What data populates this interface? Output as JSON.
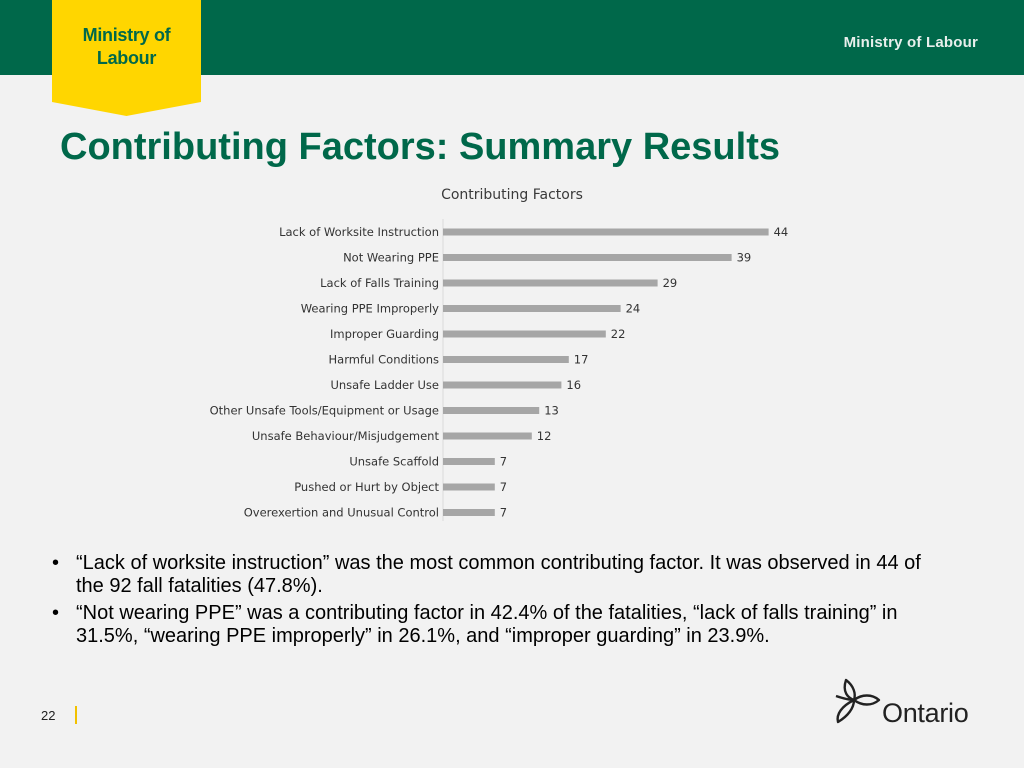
{
  "header": {
    "tab_line1": "Ministry of",
    "tab_line2": "Labour",
    "ministry_name": "Ministry of Labour",
    "brand_green": "#00684a",
    "brand_yellow": "#ffd600"
  },
  "slide": {
    "title": "Contributing Factors: Summary Results",
    "page_number": "22"
  },
  "chart_data": {
    "type": "bar",
    "orientation": "horizontal",
    "title": "Contributing Factors",
    "xlabel": "",
    "ylabel": "",
    "grid": false,
    "legend": "none",
    "bar_color": "#a6a6a6",
    "xlim": [
      0,
      50
    ],
    "categories": [
      "Lack of Worksite Instruction",
      "Not Wearing PPE",
      "Lack of Falls Training",
      "Wearing PPE Improperly",
      "Improper Guarding",
      "Harmful Conditions",
      "Unsafe Ladder Use",
      "Other Unsafe Tools/Equipment or Usage",
      "Unsafe Behaviour/Misjudgement",
      "Unsafe Scaffold",
      "Pushed or Hurt by Object",
      "Overexertion and Unusual Control"
    ],
    "values": [
      44,
      39,
      29,
      24,
      22,
      17,
      16,
      13,
      12,
      7,
      7,
      7
    ]
  },
  "bullets": [
    {
      "symbol": "•",
      "text": "“Lack of worksite instruction” was the most common contributing factor. It was observed in 44 of the 92 fall fatalities (47.8%)."
    },
    {
      "symbol": "•",
      "text": "“Not wearing PPE” was a contributing factor in 42.4% of the fatalities, “lack of falls training” in 31.5%, “wearing PPE improperly” in 26.1%, and “improper guarding” in 23.9%."
    }
  ],
  "logo": {
    "icon": "trillium-icon",
    "text": "Ontario"
  }
}
